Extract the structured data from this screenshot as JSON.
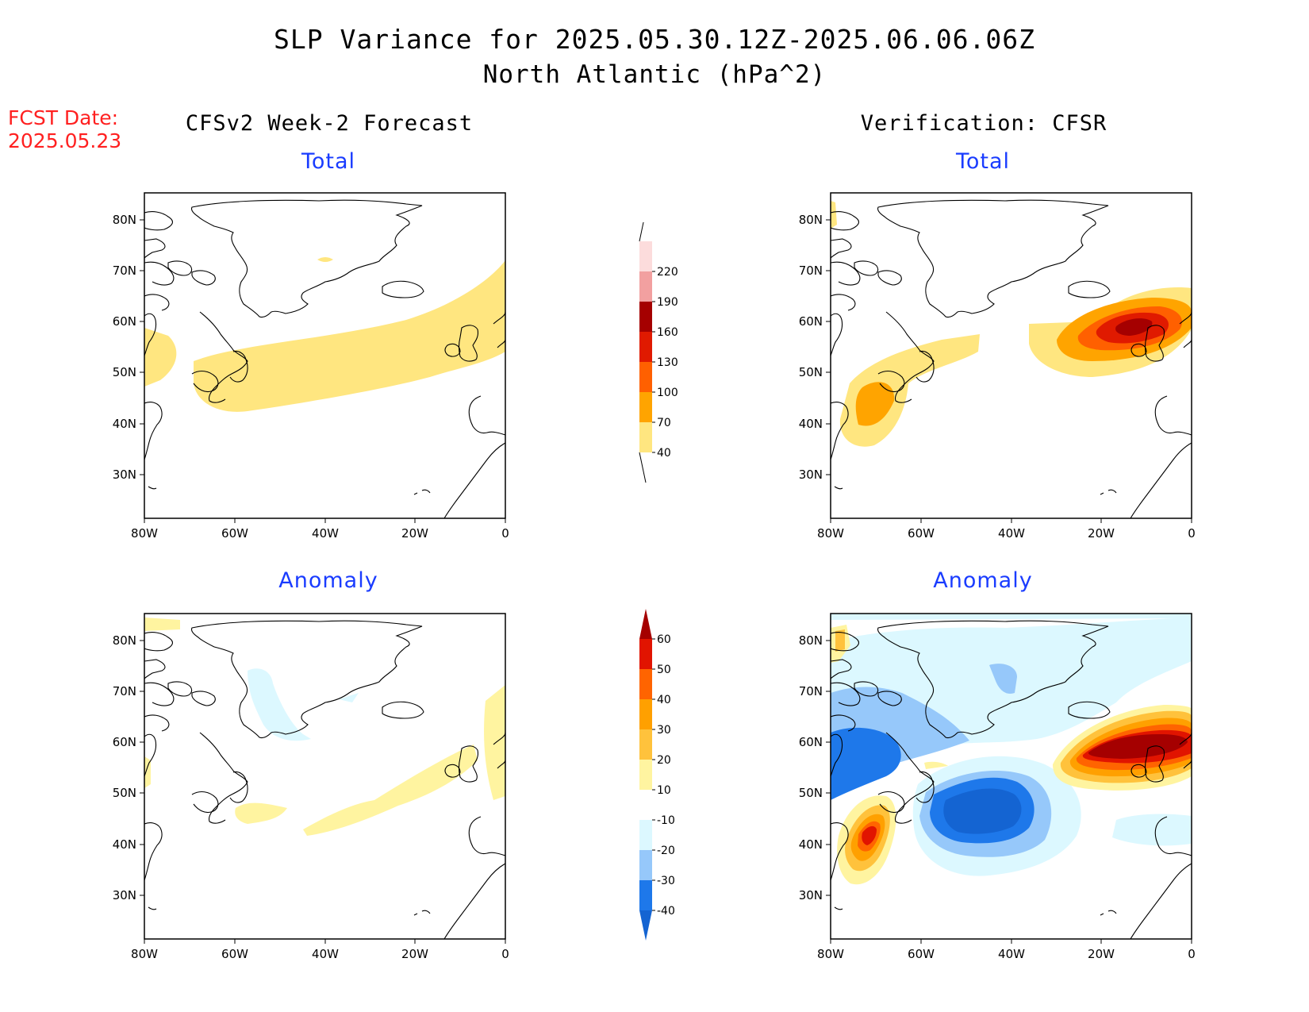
{
  "header": {
    "title": "SLP Variance for 2025.05.30.12Z-2025.06.06.06Z",
    "subtitle": "North Atlantic (hPa^2)",
    "fcst_label": "FCST Date:",
    "fcst_date": "2025.05.23"
  },
  "columns": {
    "left": "CFSv2 Week-2 Forecast",
    "right": "Verification: CFSR"
  },
  "panels": {
    "top_left": "Total",
    "top_right": "Total",
    "bottom_left": "Anomaly",
    "bottom_right": "Anomaly"
  },
  "axes": {
    "lon_labels": [
      "80W",
      "60W",
      "40W",
      "20W",
      "0"
    ],
    "lat_labels": [
      "80N",
      "70N",
      "60N",
      "50N",
      "40N",
      "30N"
    ]
  },
  "colorbars": {
    "total": {
      "labels": [
        "40",
        "70",
        "100",
        "130",
        "160",
        "190",
        "220"
      ],
      "colors": [
        "#ffe680",
        "#ffa400",
        "#ff6000",
        "#e01a00",
        "#a50000",
        "#f2a0a0",
        "#fcdcdc"
      ]
    },
    "anomaly": {
      "labels": [
        "-40",
        "-30",
        "-20",
        "-10",
        "10",
        "20",
        "30",
        "40",
        "50",
        "60"
      ],
      "colors": [
        "#1464d2",
        "#1e78ea",
        "#96c8fa",
        "#dcf8ff",
        "#ffffff",
        "#fff4a0",
        "#ffc23c",
        "#ffa000",
        "#ff6400",
        "#e11400",
        "#a50000"
      ]
    }
  }
}
